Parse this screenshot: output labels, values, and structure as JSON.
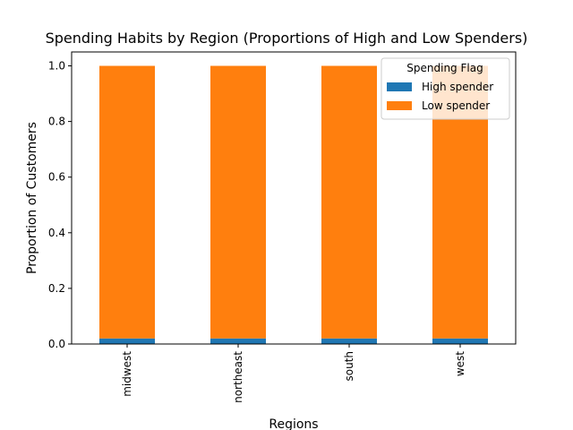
{
  "chart_data": {
    "type": "bar",
    "stacked": true,
    "title": "Spending Habits by Region (Proportions of High and Low Spenders)",
    "xlabel": "Regions",
    "ylabel": "Proportion of Customers",
    "categories": [
      "midwest",
      "northeast",
      "south",
      "west"
    ],
    "series": [
      {
        "name": "High spender",
        "color": "#1f77b4",
        "values": [
          0.02,
          0.02,
          0.02,
          0.02
        ]
      },
      {
        "name": "Low spender",
        "color": "#ff7f0e",
        "values": [
          0.98,
          0.98,
          0.98,
          0.98
        ]
      }
    ],
    "ylim": [
      0,
      1.05
    ],
    "yticks": [
      "0.0",
      "0.2",
      "0.4",
      "0.6",
      "0.8",
      "1.0"
    ],
    "ytick_values": [
      0,
      0.2,
      0.4,
      0.6,
      0.8,
      1.0
    ],
    "grid": false,
    "legend": {
      "title": "Spending Flag",
      "placement": "top-right"
    }
  }
}
